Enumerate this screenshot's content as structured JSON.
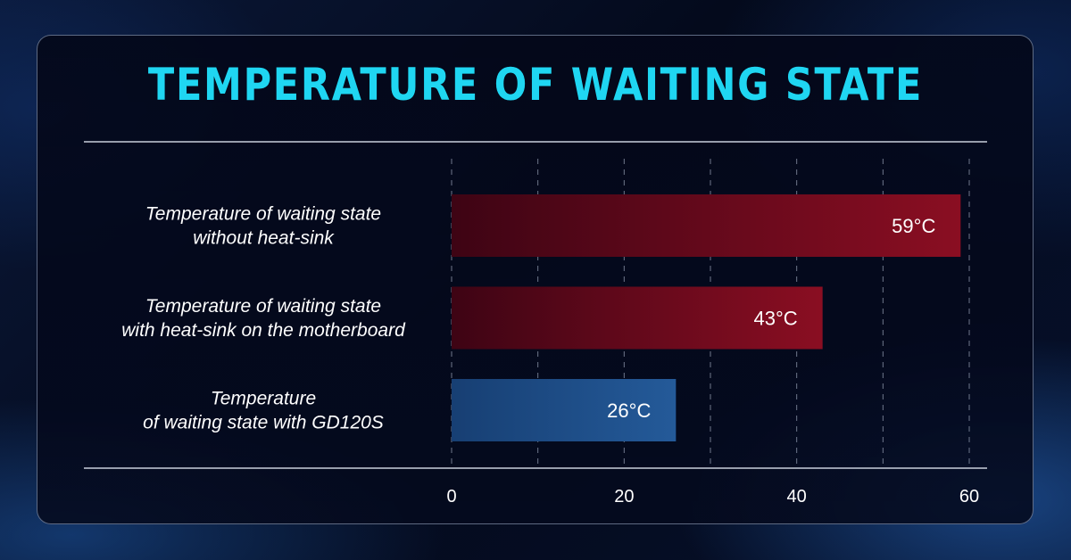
{
  "chart_data": {
    "type": "bar",
    "orientation": "horizontal",
    "title": "TEMPERATURE OF WAITING STATE",
    "categories": [
      [
        "Temperature of waiting state",
        "without heat-sink"
      ],
      [
        "Temperature of waiting state",
        "with heat-sink on the motherboard"
      ],
      [
        "Temperature",
        "of waiting state with GD120S"
      ]
    ],
    "values": [
      59,
      43,
      26
    ],
    "value_labels": [
      "59°C",
      "43°C",
      "26°C"
    ],
    "bar_colors": [
      "#8a0e22",
      "#8a0e22",
      "#245a99"
    ],
    "xlim": [
      0,
      60
    ],
    "xticks": [
      0,
      20,
      40,
      60
    ],
    "xlabel": "",
    "ylabel": "",
    "grid": "vertical dashed",
    "legend": "none"
  },
  "colors": {
    "title": "#1fd6f2",
    "text": "#ffffff",
    "grid": "#8a94a8"
  }
}
